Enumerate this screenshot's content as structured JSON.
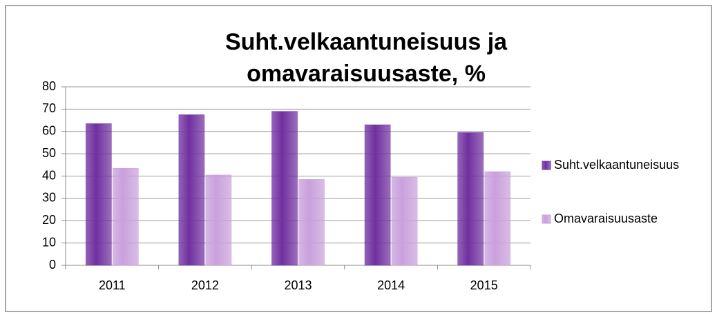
{
  "chart_data": {
    "type": "bar",
    "title": "Suht.velkaantuneisuus ja omavaraisuusaste, %",
    "categories": [
      "2011",
      "2012",
      "2013",
      "2014",
      "2015"
    ],
    "series": [
      {
        "name": "Suht.velkaantuneisuus",
        "color": "#7030a0",
        "values": [
          63.5,
          67.5,
          69,
          63,
          59.5
        ]
      },
      {
        "name": "Omavaraisuusaste",
        "color": "#c9a0dc",
        "values": [
          43.5,
          40.5,
          38.5,
          39.5,
          42
        ]
      }
    ],
    "ylim": [
      0,
      80
    ],
    "yticks": [
      0,
      10,
      20,
      30,
      40,
      50,
      60,
      70,
      80
    ],
    "grid": true,
    "legend": "right"
  }
}
